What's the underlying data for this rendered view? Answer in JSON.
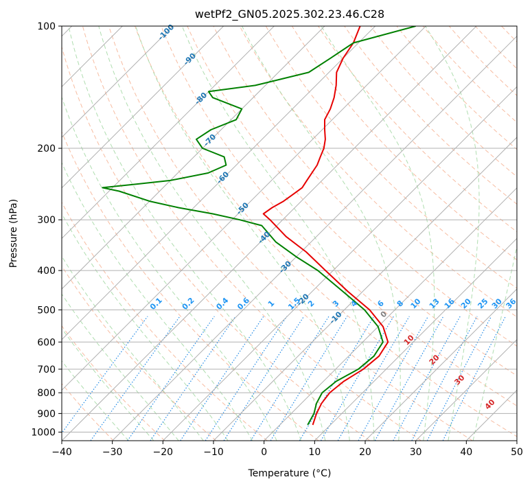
{
  "chart_data": {
    "type": "line",
    "title": "wetPf2_GN05.2025.302.23.46.C28",
    "xlabel": "Temperature (°C)",
    "ylabel": "Pressure (hPa)",
    "xlim": [
      -40,
      50
    ],
    "ylim": [
      1050,
      100
    ],
    "y_scale": "log",
    "x_ticks": [
      -40,
      -30,
      -20,
      -10,
      0,
      10,
      20,
      30,
      40,
      50
    ],
    "y_ticks": [
      100,
      200,
      300,
      400,
      500,
      600,
      700,
      800,
      900,
      1000
    ],
    "grid": true,
    "skew": 1,
    "colors": {
      "temperature": "#e60000",
      "dewpoint": "#008000",
      "isotherm": "#b0b0b0",
      "dry_adiabat": "#f4a582",
      "moist_adiabat": "#a6d9a6",
      "mixing_ratio": "#1e88e5",
      "isotherm_label": "#1f77b4",
      "mixing_label": "#2196f3",
      "moist_label": "#d62728",
      "gray_label": "#808080"
    },
    "series": [
      {
        "name": "Temperature",
        "color": "#e60000",
        "points": [
          [
            6.5,
            960
          ],
          [
            5.0,
            900
          ],
          [
            4.0,
            850
          ],
          [
            3.5,
            800
          ],
          [
            4.0,
            750
          ],
          [
            5.5,
            700
          ],
          [
            6.0,
            650
          ],
          [
            5.0,
            600
          ],
          [
            1.0,
            550
          ],
          [
            -5.0,
            500
          ],
          [
            -13.0,
            450
          ],
          [
            -21.5,
            400
          ],
          [
            -29.0,
            360
          ],
          [
            -36.0,
            330
          ],
          [
            -42.5,
            300
          ],
          [
            -45.0,
            290
          ],
          [
            -44.5,
            280
          ],
          [
            -43.5,
            270
          ],
          [
            -43.0,
            260
          ],
          [
            -42.5,
            250
          ],
          [
            -43.0,
            240
          ],
          [
            -43.5,
            230
          ],
          [
            -44.0,
            220
          ],
          [
            -45.0,
            210
          ],
          [
            -46.0,
            200
          ],
          [
            -47.5,
            190
          ],
          [
            -49.5,
            180
          ],
          [
            -51.5,
            170
          ],
          [
            -52.5,
            160
          ],
          [
            -54.0,
            150
          ],
          [
            -56.0,
            140
          ],
          [
            -58.5,
            130
          ],
          [
            -60.0,
            120
          ],
          [
            -61.0,
            110
          ],
          [
            -63.0,
            100
          ]
        ]
      },
      {
        "name": "Dewpoint",
        "color": "#008000",
        "points": [
          [
            5.5,
            960
          ],
          [
            4.5,
            900
          ],
          [
            3.0,
            850
          ],
          [
            2.0,
            800
          ],
          [
            2.5,
            750
          ],
          [
            4.5,
            700
          ],
          [
            5.0,
            650
          ],
          [
            4.0,
            600
          ],
          [
            0.0,
            550
          ],
          [
            -6.0,
            500
          ],
          [
            -14.0,
            450
          ],
          [
            -23.0,
            400
          ],
          [
            -30.0,
            370
          ],
          [
            -37.0,
            340
          ],
          [
            -43.0,
            310
          ],
          [
            -48.5,
            300
          ],
          [
            -55.0,
            290
          ],
          [
            -63.0,
            280
          ],
          [
            -70.0,
            270
          ],
          [
            -78.0,
            255
          ],
          [
            -82.0,
            250
          ],
          [
            -76.0,
            245
          ],
          [
            -70.0,
            240
          ],
          [
            -64.0,
            230
          ],
          [
            -62.0,
            220
          ],
          [
            -64.0,
            210
          ],
          [
            -70.0,
            200
          ],
          [
            -73.0,
            190
          ],
          [
            -72.0,
            180
          ],
          [
            -69.0,
            170
          ],
          [
            -70.0,
            160
          ],
          [
            -78.0,
            150
          ],
          [
            -80.0,
            145
          ],
          [
            -72.0,
            140
          ],
          [
            -64.0,
            130
          ],
          [
            -62.5,
            120
          ],
          [
            -61.0,
            110
          ],
          [
            -52.0,
            100
          ]
        ]
      }
    ],
    "isotherm_labels": [
      "-100",
      "-90",
      "-80",
      "-70",
      "-60",
      "-50",
      "-40",
      "-30",
      "-20",
      "-10"
    ],
    "mixing_ratio_labels": [
      "0.1",
      "0.2",
      "0.4",
      "0.6",
      "1",
      "1.5",
      "2",
      "3",
      "4",
      "6",
      "8",
      "10",
      "13",
      "16",
      "20",
      "25",
      "30",
      "36"
    ],
    "moist_adiabat_labels": [
      "0",
      "10",
      "20",
      "30",
      "40"
    ]
  }
}
